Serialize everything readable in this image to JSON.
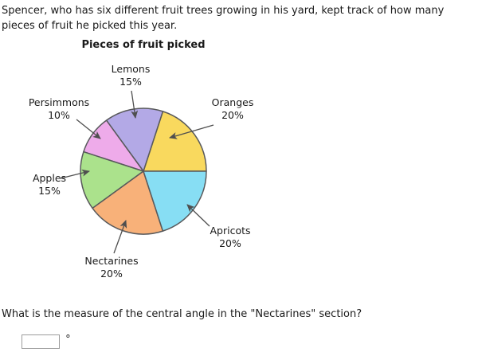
{
  "intro": "Spencer, who has six different fruit trees growing in his yard, kept track of how many pieces of fruit he picked this year.",
  "chart_data": {
    "type": "pie",
    "title": "Pieces of fruit picked",
    "start_angle_deg": 0,
    "direction": "counterclockwise",
    "outline_color": "#58595B",
    "arrow_color": "#4f4f4f",
    "slices": [
      {
        "name": "Oranges",
        "pct": 20,
        "pct_label": "20%",
        "color": "#F9D95E"
      },
      {
        "name": "Lemons",
        "pct": 15,
        "pct_label": "15%",
        "color": "#B3A9E6"
      },
      {
        "name": "Persimmons",
        "pct": 10,
        "pct_label": "10%",
        "color": "#EEABEA"
      },
      {
        "name": "Apples",
        "pct": 15,
        "pct_label": "15%",
        "color": "#ABE28C"
      },
      {
        "name": "Nectarines",
        "pct": 20,
        "pct_label": "20%",
        "color": "#F8B179"
      },
      {
        "name": "Apricots",
        "pct": 20,
        "pct_label": "20%",
        "color": "#87DEF4"
      }
    ]
  },
  "question": "What is the measure of the central angle in the \"Nectarines\" section?",
  "answer_input": {
    "value": "",
    "unit": "°"
  }
}
